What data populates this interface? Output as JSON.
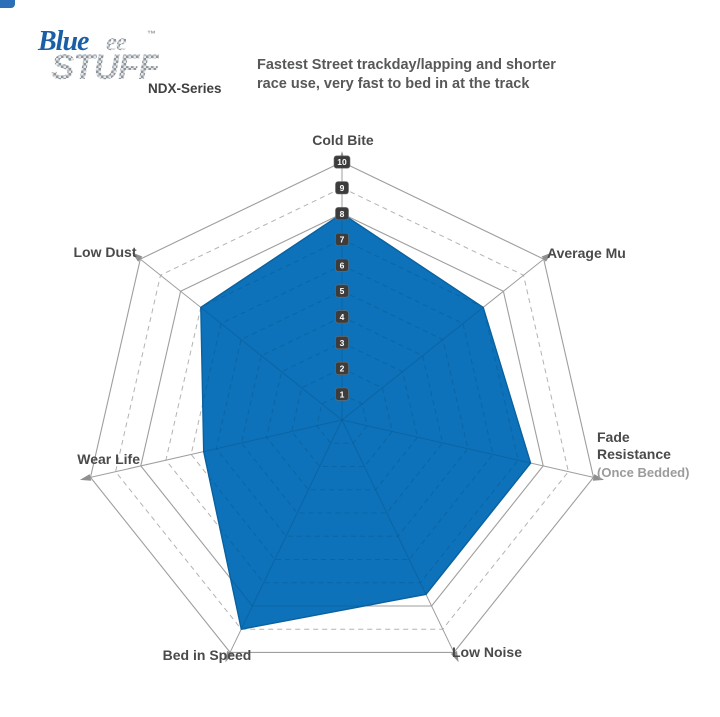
{
  "logo": {
    "word1": "Blue",
    "ghost": "ee",
    "trademark": "™",
    "word2": "STUFF",
    "series": "NDX-Series",
    "brand_blue": "#1a5fa6"
  },
  "description": {
    "line1": "Fastest Street trackday/lapping and shorter",
    "line2": "race use, very fast to bed in at the track"
  },
  "chart_data": {
    "type": "radar",
    "title": "Bluestuff NDX-Series brake pad performance ratings",
    "categories": [
      "Cold Bite",
      "Average Mu",
      "Fade Resistance",
      "Low Noise",
      "Bed in Speed",
      "Wear Life",
      "Low Dust"
    ],
    "sublabels": [
      "",
      "",
      "(Once Bedded)",
      "",
      "",
      "",
      ""
    ],
    "values": [
      8,
      7,
      7.5,
      7.5,
      9,
      5.5,
      7
    ],
    "scale_min": 1,
    "scale_max": 10,
    "scale_ticks": [
      1,
      2,
      3,
      4,
      5,
      6,
      7,
      8,
      9,
      10
    ],
    "tick_axis": "Cold Bite",
    "grid": {
      "rings": 10,
      "solid_rings": [
        8,
        10
      ],
      "dashed_rings": [
        1,
        2,
        3,
        4,
        5,
        6,
        7,
        9
      ],
      "shape": "heptagon web",
      "legend": "none"
    },
    "colors": {
      "fill": "#0d72ba",
      "fill_stroke": "#0a619e",
      "inner_grid": "#0a5890",
      "grid_line": "#9e9e9e",
      "grid_dashed": "#b3b3b3",
      "tick_chip_bg": "#3c3c3c",
      "tick_chip_text": "#ffffff",
      "axis_label": "#4a4a4b",
      "axis_sublabel": "#9b9b9b"
    }
  }
}
